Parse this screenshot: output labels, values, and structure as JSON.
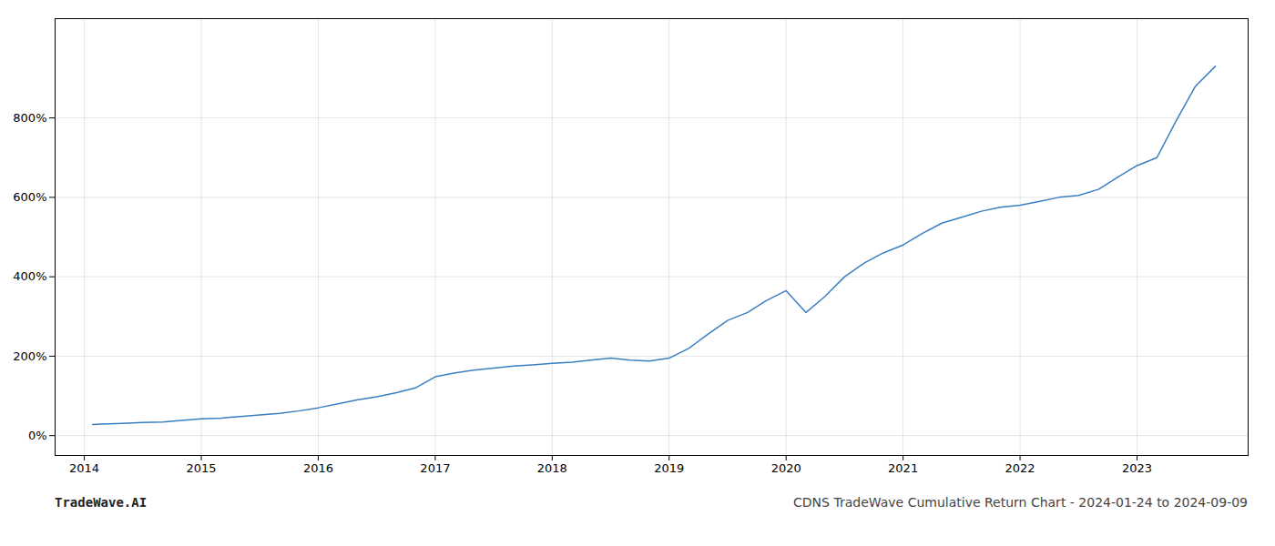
{
  "chart_data": {
    "type": "line",
    "title": "CDNS TradeWave Cumulative Return Chart - 2024-01-24 to 2024-09-09",
    "annotations": [
      "TradeWave.AI"
    ],
    "x": [
      2014.07,
      2014.15,
      2014.33,
      2014.5,
      2014.67,
      2014.83,
      2015.0,
      2015.17,
      2015.33,
      2015.5,
      2015.67,
      2015.83,
      2016.0,
      2016.17,
      2016.33,
      2016.5,
      2016.67,
      2016.83,
      2017.0,
      2017.17,
      2017.33,
      2017.5,
      2017.67,
      2017.83,
      2018.0,
      2018.17,
      2018.33,
      2018.5,
      2018.67,
      2018.83,
      2019.0,
      2019.17,
      2019.33,
      2019.5,
      2019.67,
      2019.83,
      2020.0,
      2020.17,
      2020.33,
      2020.5,
      2020.67,
      2020.83,
      2021.0,
      2021.17,
      2021.33,
      2021.5,
      2021.67,
      2021.83,
      2022.0,
      2022.17,
      2022.33,
      2022.5,
      2022.67,
      2022.83,
      2023.0,
      2023.17,
      2023.33,
      2023.5,
      2023.67
    ],
    "values": [
      28,
      29,
      31,
      33,
      34,
      38,
      42,
      44,
      48,
      52,
      56,
      62,
      70,
      80,
      90,
      98,
      108,
      120,
      148,
      158,
      165,
      170,
      175,
      178,
      182,
      185,
      190,
      195,
      190,
      188,
      195,
      220,
      255,
      290,
      310,
      340,
      365,
      310,
      350,
      400,
      435,
      460,
      480,
      510,
      535,
      550,
      565,
      575,
      580,
      590,
      600,
      605,
      620,
      650,
      680,
      700,
      790,
      880,
      930
    ],
    "color": "#3a7fc1",
    "xlim": [
      2013.75,
      2023.95
    ],
    "xticks": [
      2014,
      2015,
      2016,
      2017,
      2018,
      2019,
      2020,
      2021,
      2022,
      2023
    ],
    "ylim": [
      -50,
      1050
    ],
    "yticks": [
      {
        "value": 0,
        "label": "0%"
      },
      {
        "value": 200,
        "label": "200%"
      },
      {
        "value": 400,
        "label": "400%"
      },
      {
        "value": 600,
        "label": "600%"
      },
      {
        "value": 800,
        "label": "800%"
      }
    ],
    "grid": true
  }
}
